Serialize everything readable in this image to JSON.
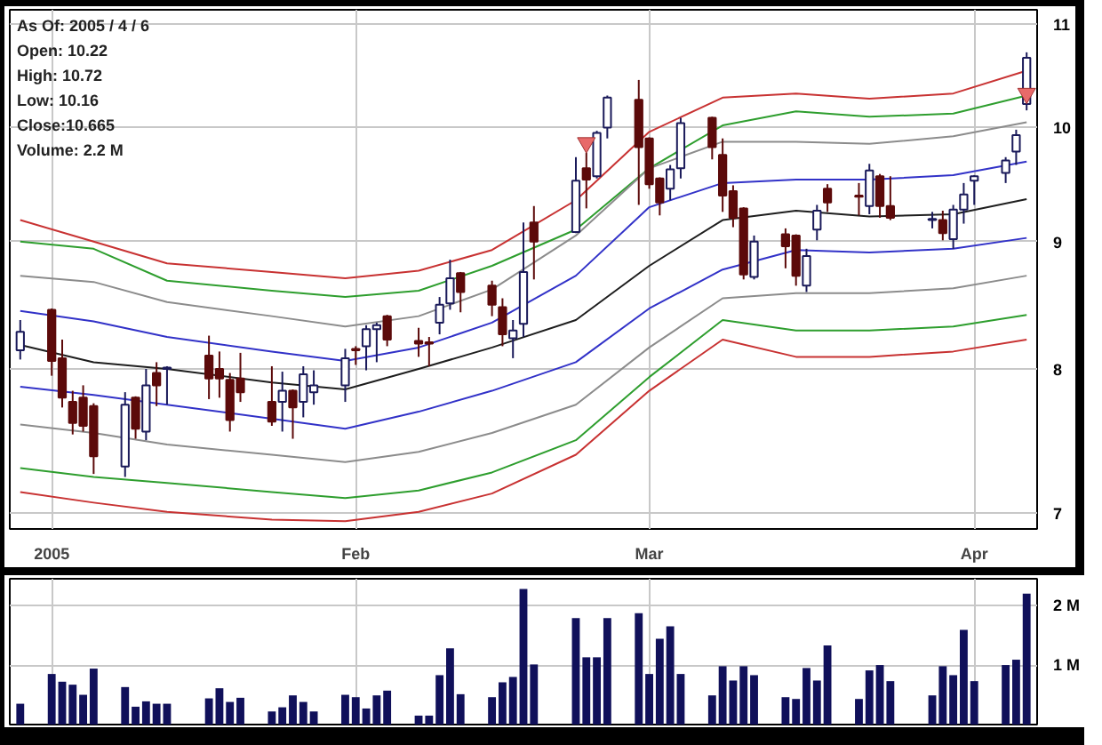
{
  "chart_data": [
    {
      "type": "candlestick",
      "x": [
        "2004-12-31",
        "2005-01-03",
        "2005-01-04",
        "2005-01-05",
        "2005-01-06",
        "2005-01-07",
        "2005-01-10",
        "2005-01-11",
        "2005-01-12",
        "2005-01-13",
        "2005-01-14",
        "2005-01-18",
        "2005-01-19",
        "2005-01-20",
        "2005-01-21",
        "2005-01-24",
        "2005-01-25",
        "2005-01-26",
        "2005-01-27",
        "2005-01-28",
        "2005-01-31",
        "2005-02-01",
        "2005-02-02",
        "2005-02-03",
        "2005-02-04",
        "2005-02-07",
        "2005-02-08",
        "2005-02-09",
        "2005-02-10",
        "2005-02-11",
        "2005-02-14",
        "2005-02-15",
        "2005-02-16",
        "2005-02-17",
        "2005-02-18",
        "2005-02-22",
        "2005-02-23",
        "2005-02-24",
        "2005-02-25",
        "2005-02-28",
        "2005-03-01",
        "2005-03-02",
        "2005-03-03",
        "2005-03-04",
        "2005-03-07",
        "2005-03-08",
        "2005-03-09",
        "2005-03-10",
        "2005-03-11",
        "2005-03-14",
        "2005-03-15",
        "2005-03-16",
        "2005-03-17",
        "2005-03-18",
        "2005-03-21",
        "2005-03-22",
        "2005-03-23",
        "2005-03-24",
        "2005-03-28",
        "2005-03-29",
        "2005-03-30",
        "2005-03-31",
        "2005-04-01",
        "2005-04-04",
        "2005-04-05",
        "2005-04-06"
      ],
      "ohlc": [
        [
          8.14,
          8.37,
          8.07,
          8.28
        ],
        [
          8.45,
          8.46,
          7.95,
          8.06
        ],
        [
          8.08,
          8.22,
          7.72,
          7.79
        ],
        [
          7.76,
          7.84,
          7.53,
          7.61
        ],
        [
          7.79,
          7.88,
          7.55,
          7.59
        ],
        [
          7.73,
          7.75,
          7.26,
          7.38
        ],
        [
          7.31,
          7.83,
          7.24,
          7.74
        ],
        [
          7.79,
          7.8,
          7.5,
          7.57
        ],
        [
          7.55,
          8.0,
          7.49,
          7.88
        ],
        [
          7.97,
          8.05,
          7.73,
          7.88
        ],
        [
          8.0,
          8.02,
          7.74,
          8.01
        ],
        [
          8.1,
          8.25,
          7.78,
          7.93
        ],
        [
          8.0,
          8.13,
          7.79,
          7.93
        ],
        [
          7.92,
          7.97,
          7.55,
          7.63
        ],
        [
          7.93,
          8.12,
          7.76,
          7.83
        ],
        [
          7.76,
          8.02,
          7.59,
          7.62
        ],
        [
          7.76,
          7.98,
          7.55,
          7.84
        ],
        [
          7.84,
          7.85,
          7.5,
          7.72
        ],
        [
          7.76,
          8.02,
          7.65,
          7.96
        ],
        [
          7.83,
          7.99,
          7.74,
          7.88
        ],
        [
          7.88,
          8.15,
          7.76,
          8.08
        ],
        [
          8.15,
          8.17,
          8.03,
          8.14
        ],
        [
          8.17,
          8.33,
          7.99,
          8.3
        ],
        [
          8.3,
          8.35,
          8.05,
          8.33
        ],
        [
          8.4,
          8.41,
          8.17,
          8.22
        ],
        [
          8.21,
          8.31,
          8.09,
          8.19
        ],
        [
          8.2,
          8.24,
          8.02,
          8.19
        ],
        [
          8.35,
          8.55,
          8.26,
          8.49
        ],
        [
          8.5,
          8.85,
          8.45,
          8.7
        ],
        [
          8.74,
          8.75,
          8.43,
          8.59
        ],
        [
          8.64,
          8.68,
          8.4,
          8.49
        ],
        [
          8.47,
          8.54,
          8.17,
          8.26
        ],
        [
          8.23,
          8.37,
          8.08,
          8.29
        ],
        [
          8.34,
          9.16,
          8.24,
          8.75
        ],
        [
          9.16,
          9.3,
          8.69,
          9.0
        ],
        [
          9.08,
          9.73,
          9.07,
          9.52
        ],
        [
          9.63,
          9.77,
          9.28,
          9.53
        ],
        [
          9.56,
          9.97,
          9.54,
          9.95
        ],
        [
          10.0,
          10.3,
          9.9,
          10.28
        ],
        [
          10.26,
          10.45,
          9.31,
          9.82
        ],
        [
          9.9,
          9.91,
          9.45,
          9.49
        ],
        [
          9.54,
          9.55,
          9.22,
          9.33
        ],
        [
          9.45,
          9.66,
          9.35,
          9.62
        ],
        [
          9.63,
          10.09,
          9.54,
          10.04
        ],
        [
          10.09,
          10.1,
          9.71,
          9.82
        ],
        [
          9.75,
          9.9,
          9.25,
          9.39
        ],
        [
          9.43,
          9.48,
          9.12,
          9.2
        ],
        [
          9.28,
          9.29,
          8.69,
          8.73
        ],
        [
          8.71,
          9.05,
          8.69,
          9.0
        ],
        [
          9.06,
          9.11,
          8.78,
          8.96
        ],
        [
          9.05,
          9.06,
          8.64,
          8.72
        ],
        [
          8.64,
          8.94,
          8.59,
          8.88
        ],
        [
          9.1,
          9.31,
          9.01,
          9.26
        ],
        [
          9.45,
          9.49,
          9.25,
          9.33
        ],
        [
          9.39,
          9.5,
          9.22,
          9.38
        ],
        [
          9.3,
          9.67,
          9.23,
          9.61
        ],
        [
          9.56,
          9.58,
          9.2,
          9.3
        ],
        [
          9.3,
          9.56,
          9.18,
          9.2
        ],
        [
          9.18,
          9.25,
          9.11,
          9.19
        ],
        [
          9.18,
          9.26,
          9.01,
          9.07
        ],
        [
          9.02,
          9.31,
          8.94,
          9.27
        ],
        [
          9.27,
          9.5,
          9.15,
          9.4
        ],
        [
          9.52,
          9.57,
          9.31,
          9.56
        ],
        [
          9.59,
          9.73,
          9.5,
          9.7
        ],
        [
          9.78,
          9.98,
          9.66,
          9.93
        ],
        [
          10.22,
          10.72,
          10.16,
          10.665
        ]
      ],
      "colors": [
        "#ffffff",
        "#5c0a0a",
        "#5c0a0a",
        "#5c0a0a",
        "#5c0a0a",
        "#5c0a0a",
        "#ffffff",
        "#5c0a0a",
        "#ffffff",
        "#5c0a0a",
        "#ffffff",
        "#5c0a0a",
        "#5c0a0a",
        "#5c0a0a",
        "#5c0a0a",
        "#5c0a0a",
        "#ffffff",
        "#5c0a0a",
        "#ffffff",
        "#ffffff",
        "#ffffff",
        "#5c0a0a",
        "#ffffff",
        "#ffffff",
        "#5c0a0a",
        "#5c0a0a",
        "#5c0a0a",
        "#ffffff",
        "#ffffff",
        "#5c0a0a",
        "#5c0a0a",
        "#5c0a0a",
        "#ffffff",
        "#ffffff",
        "#5c0a0a",
        "#ffffff",
        "#5c0a0a",
        "#ffffff",
        "#ffffff",
        "#5c0a0a",
        "#5c0a0a",
        "#5c0a0a",
        "#ffffff",
        "#ffffff",
        "#5c0a0a",
        "#5c0a0a",
        "#5c0a0a",
        "#5c0a0a",
        "#ffffff",
        "#5c0a0a",
        "#5c0a0a",
        "#ffffff",
        "#ffffff",
        "#5c0a0a",
        "#5c0a0a",
        "#ffffff",
        "#5c0a0a",
        "#5c0a0a",
        "#ffffff",
        "#5c0a0a",
        "#ffffff",
        "#ffffff",
        "#ffffff",
        "#ffffff",
        "#ffffff",
        "#ffffff"
      ],
      "series": [
        {
          "type": "line",
          "color": "#c83232",
          "x": [
            "2004-12-31",
            "2005-01-07",
            "2005-01-14",
            "2005-01-24",
            "2005-01-31",
            "2005-02-07",
            "2005-02-14",
            "2005-02-22",
            "2005-03-01",
            "2005-03-08",
            "2005-03-15",
            "2005-03-22",
            "2005-03-30",
            "2005-04-06"
          ],
          "values": [
            9.18,
            9.0,
            8.82,
            8.75,
            8.7,
            8.76,
            8.93,
            9.35,
            9.96,
            10.28,
            10.32,
            10.27,
            10.32,
            10.54
          ]
        },
        {
          "type": "line",
          "color": "#2e9e2e",
          "x": [
            "2004-12-31",
            "2005-01-07",
            "2005-01-14",
            "2005-01-24",
            "2005-01-31",
            "2005-02-07",
            "2005-02-14",
            "2005-02-22",
            "2005-03-01",
            "2005-03-08",
            "2005-03-15",
            "2005-03-22",
            "2005-03-30",
            "2005-04-06"
          ],
          "values": [
            9.0,
            8.94,
            8.68,
            8.6,
            8.55,
            8.6,
            8.8,
            9.1,
            9.63,
            10.02,
            10.15,
            10.1,
            10.13,
            10.3
          ]
        },
        {
          "type": "line",
          "color": "#8c8c8c",
          "x": [
            "2004-12-31",
            "2005-01-07",
            "2005-01-14",
            "2005-01-24",
            "2005-01-31",
            "2005-02-07",
            "2005-02-14",
            "2005-02-22",
            "2005-03-01",
            "2005-03-08",
            "2005-03-15",
            "2005-03-22",
            "2005-03-30",
            "2005-04-06"
          ],
          "values": [
            8.72,
            8.67,
            8.51,
            8.4,
            8.32,
            8.4,
            8.61,
            9.05,
            9.63,
            9.87,
            9.87,
            9.85,
            9.92,
            10.05
          ]
        },
        {
          "type": "line",
          "color": "#3232c8",
          "x": [
            "2004-12-31",
            "2005-01-07",
            "2005-01-14",
            "2005-01-24",
            "2005-01-31",
            "2005-02-07",
            "2005-02-14",
            "2005-02-22",
            "2005-03-01",
            "2005-03-08",
            "2005-03-15",
            "2005-03-22",
            "2005-03-30",
            "2005-04-06"
          ],
          "values": [
            8.44,
            8.36,
            8.24,
            8.13,
            8.06,
            8.16,
            8.35,
            8.72,
            9.29,
            9.5,
            9.53,
            9.53,
            9.57,
            9.69
          ]
        },
        {
          "type": "line",
          "color": "#1e1e1e",
          "x": [
            "2004-12-31",
            "2005-01-07",
            "2005-01-14",
            "2005-01-24",
            "2005-01-31",
            "2005-02-07",
            "2005-02-14",
            "2005-02-22",
            "2005-03-01",
            "2005-03-08",
            "2005-03-15",
            "2005-03-22",
            "2005-03-30",
            "2005-04-06"
          ],
          "values": [
            8.18,
            8.05,
            8.0,
            7.9,
            7.85,
            8.0,
            8.16,
            8.37,
            8.8,
            9.18,
            9.26,
            9.21,
            9.23,
            9.36
          ]
        },
        {
          "type": "line",
          "color": "#3232c8",
          "x": [
            "2004-12-31",
            "2005-01-07",
            "2005-01-14",
            "2005-01-24",
            "2005-01-31",
            "2005-02-07",
            "2005-02-14",
            "2005-02-22",
            "2005-03-01",
            "2005-03-08",
            "2005-03-15",
            "2005-03-22",
            "2005-03-30",
            "2005-04-06"
          ],
          "values": [
            7.87,
            7.81,
            7.74,
            7.64,
            7.57,
            7.69,
            7.84,
            8.05,
            8.46,
            8.77,
            8.93,
            8.91,
            8.94,
            9.03
          ]
        },
        {
          "type": "line",
          "color": "#8c8c8c",
          "x": [
            "2004-12-31",
            "2005-01-07",
            "2005-01-14",
            "2005-01-24",
            "2005-01-31",
            "2005-02-07",
            "2005-02-14",
            "2005-02-22",
            "2005-03-01",
            "2005-03-08",
            "2005-03-15",
            "2005-03-22",
            "2005-03-30",
            "2005-04-06"
          ],
          "values": [
            7.6,
            7.54,
            7.46,
            7.39,
            7.34,
            7.41,
            7.54,
            7.74,
            8.16,
            8.54,
            8.58,
            8.58,
            8.62,
            8.72
          ]
        },
        {
          "type": "line",
          "color": "#2e9e2e",
          "x": [
            "2004-12-31",
            "2005-01-07",
            "2005-01-14",
            "2005-01-24",
            "2005-01-31",
            "2005-02-07",
            "2005-02-14",
            "2005-02-22",
            "2005-03-01",
            "2005-03-08",
            "2005-03-15",
            "2005-03-22",
            "2005-03-30",
            "2005-04-06"
          ],
          "values": [
            7.3,
            7.24,
            7.2,
            7.14,
            7.1,
            7.15,
            7.27,
            7.49,
            7.94,
            8.37,
            8.29,
            8.29,
            8.32,
            8.41
          ]
        },
        {
          "type": "line",
          "color": "#c83232",
          "x": [
            "2004-12-31",
            "2005-01-07",
            "2005-01-14",
            "2005-01-24",
            "2005-01-31",
            "2005-02-07",
            "2005-02-14",
            "2005-02-22",
            "2005-03-01",
            "2005-03-08",
            "2005-03-15",
            "2005-03-22",
            "2005-03-30",
            "2005-04-06"
          ],
          "values": [
            7.14,
            7.07,
            7.01,
            6.96,
            6.95,
            7.01,
            7.13,
            7.39,
            7.84,
            8.22,
            8.09,
            8.09,
            8.13,
            8.22
          ]
        },
        {
          "type": "scatter",
          "marker": "triangle",
          "color": "#e86a6a",
          "x": [
            "2005-02-23",
            "2005-04-06"
          ],
          "values": [
            9.86,
            10.32
          ]
        }
      ],
      "xlim": [
        "2004-12-30",
        "2005-04-07"
      ],
      "xticks": [
        {
          "value": "2005-01-03",
          "label": "2005"
        },
        {
          "value": "2005-02-01",
          "label": "Feb"
        },
        {
          "value": "2005-03-01",
          "label": "Mar"
        },
        {
          "value": "2005-04-01",
          "label": "Apr"
        }
      ],
      "ylim": [
        6.9,
        11.15
      ],
      "yticks": [
        7,
        8,
        9,
        10,
        11
      ],
      "log": true,
      "grid": true,
      "annotations": [
        "As Of: 2005 / 4 / 6",
        "Open: 10.22",
        "High: 10.72",
        "Low: 10.16",
        "Close:10.665",
        "Volume: 2.2 M"
      ]
    },
    {
      "type": "bar",
      "color": "#10105a",
      "x": [
        "2004-12-31",
        "2005-01-03",
        "2005-01-04",
        "2005-01-05",
        "2005-01-06",
        "2005-01-07",
        "2005-01-10",
        "2005-01-11",
        "2005-01-12",
        "2005-01-13",
        "2005-01-14",
        "2005-01-18",
        "2005-01-19",
        "2005-01-20",
        "2005-01-21",
        "2005-01-24",
        "2005-01-25",
        "2005-01-26",
        "2005-01-27",
        "2005-01-28",
        "2005-01-31",
        "2005-02-01",
        "2005-02-02",
        "2005-02-03",
        "2005-02-04",
        "2005-02-07",
        "2005-02-08",
        "2005-02-09",
        "2005-02-10",
        "2005-02-11",
        "2005-02-14",
        "2005-02-15",
        "2005-02-16",
        "2005-02-17",
        "2005-02-18",
        "2005-02-22",
        "2005-02-23",
        "2005-02-24",
        "2005-02-25",
        "2005-02-28",
        "2005-03-01",
        "2005-03-02",
        "2005-03-03",
        "2005-03-04",
        "2005-03-07",
        "2005-03-08",
        "2005-03-09",
        "2005-03-10",
        "2005-03-11",
        "2005-03-14",
        "2005-03-15",
        "2005-03-16",
        "2005-03-17",
        "2005-03-18",
        "2005-03-21",
        "2005-03-22",
        "2005-03-23",
        "2005-03-24",
        "2005-03-28",
        "2005-03-29",
        "2005-03-30",
        "2005-03-31",
        "2005-04-01",
        "2005-04-04",
        "2005-04-05",
        "2005-04-06"
      ],
      "values": [
        0.35,
        0.85,
        0.72,
        0.67,
        0.5,
        0.94,
        0.63,
        0.3,
        0.39,
        0.35,
        0.35,
        0.44,
        0.61,
        0.38,
        0.45,
        0.22,
        0.29,
        0.49,
        0.38,
        0.22,
        0.5,
        0.46,
        0.27,
        0.49,
        0.57,
        0.15,
        0.15,
        0.83,
        1.28,
        0.51,
        0.46,
        0.71,
        0.8,
        2.28,
        1.01,
        1.79,
        1.13,
        1.13,
        1.79,
        1.87,
        0.85,
        1.44,
        1.65,
        0.85,
        0.49,
        0.98,
        0.74,
        0.98,
        0.83,
        0.46,
        0.43,
        0.95,
        0.74,
        1.33,
        0.43,
        0.91,
        1.0,
        0.73,
        0.49,
        0.98,
        0.83,
        1.59,
        0.73,
        1.0,
        1.09,
        2.2
      ],
      "xlim": [
        "2004-12-30",
        "2005-04-07"
      ],
      "xticks": [
        {
          "value": "2005-01-03",
          "label": null
        },
        {
          "value": "2005-02-01",
          "label": null
        },
        {
          "value": "2005-03-01",
          "label": null
        },
        {
          "value": "2005-04-01",
          "label": null
        }
      ],
      "ylim": [
        0,
        2.45
      ],
      "yticks": [
        {
          "value": 1,
          "label": "1 M"
        },
        {
          "value": 2,
          "label": "2 M"
        }
      ],
      "tick_labels": "y",
      "grid": true
    }
  ]
}
